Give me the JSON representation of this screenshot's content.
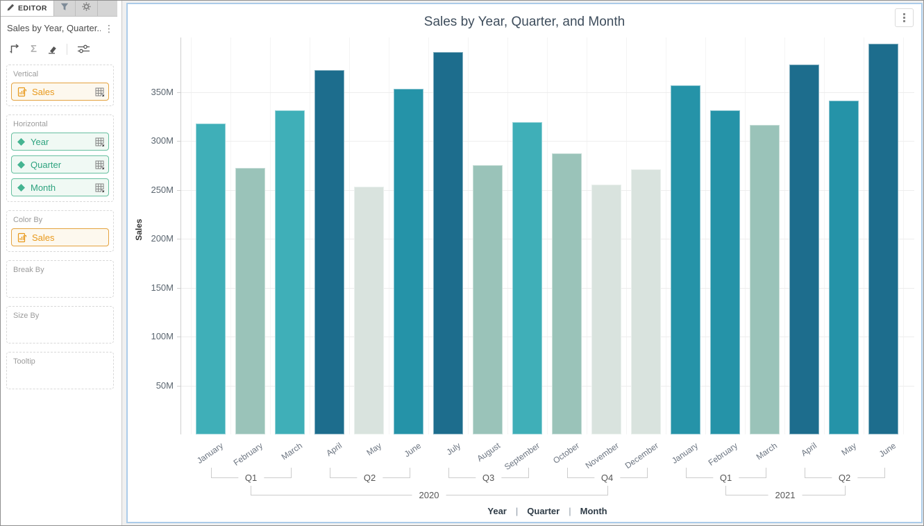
{
  "sidebar": {
    "tabs": [
      {
        "label": "EDITOR",
        "icon": "pencil-icon",
        "active": true
      },
      {
        "label": "",
        "icon": "funnel-icon",
        "active": false
      },
      {
        "label": "",
        "icon": "gear-icon",
        "active": false
      }
    ],
    "widget_title": "Sales by Year, Quarter...",
    "toolbar_icons": [
      "axes-arrow-icon",
      "sigma-icon",
      "eraser-icon",
      "sliders-icon"
    ],
    "sections": [
      {
        "label": "Vertical",
        "chips": [
          {
            "label": "Sales",
            "kind": "measure",
            "grid": true
          }
        ]
      },
      {
        "label": "Horizontal",
        "chips": [
          {
            "label": "Year",
            "kind": "dimension",
            "grid": true
          },
          {
            "label": "Quarter",
            "kind": "dimension",
            "grid": true
          },
          {
            "label": "Month",
            "kind": "dimension",
            "grid": true
          }
        ]
      },
      {
        "label": "Color By",
        "chips": [
          {
            "label": "Sales",
            "kind": "measure",
            "grid": false
          }
        ]
      },
      {
        "label": "Break By",
        "chips": []
      },
      {
        "label": "Size By",
        "chips": []
      },
      {
        "label": "Tooltip",
        "chips": []
      }
    ]
  },
  "colors": {
    "accent_orange": "#E8991C",
    "accent_green": "#2EA37F",
    "panel_border": "#ABCBE9",
    "palette_lowest": "#D9E3DE",
    "palette_low": "#9AC3B9",
    "palette_mid": "#3FAFB8",
    "palette_high": "#2593A8",
    "palette_highest": "#1D6D8D"
  },
  "chart_data": {
    "type": "bar",
    "title": "Sales by Year, Quarter, and Month",
    "ylabel": "Sales",
    "xlabel": "",
    "ylim": [
      0,
      405
    ],
    "grid": true,
    "y_ticks": [
      50,
      100,
      150,
      200,
      250,
      300,
      350
    ],
    "y_tick_suffix": "M",
    "categories": [
      "January",
      "February",
      "March",
      "April",
      "May",
      "June",
      "July",
      "August",
      "September",
      "October",
      "November",
      "December",
      "January",
      "February",
      "March",
      "April",
      "May",
      "June"
    ],
    "values": [
      318,
      272,
      331,
      372,
      253,
      353,
      391,
      275,
      319,
      287,
      255,
      271,
      357,
      331,
      316,
      378,
      341,
      399
    ],
    "bar_colors": [
      "#3FAFB8",
      "#9AC3B9",
      "#3FAFB8",
      "#1D6D8D",
      "#D9E3DE",
      "#2593A8",
      "#1D6D8D",
      "#9AC3B9",
      "#3FAFB8",
      "#9AC3B9",
      "#D9E3DE",
      "#D9E3DE",
      "#2593A8",
      "#2593A8",
      "#9AC3B9",
      "#1D6D8D",
      "#2593A8",
      "#1D6D8D"
    ],
    "quarter_groups": [
      {
        "label": "Q1",
        "from": 0,
        "to": 2
      },
      {
        "label": "Q2",
        "from": 3,
        "to": 5
      },
      {
        "label": "Q3",
        "from": 6,
        "to": 8
      },
      {
        "label": "Q4",
        "from": 9,
        "to": 11
      },
      {
        "label": "Q1",
        "from": 12,
        "to": 14
      },
      {
        "label": "Q2",
        "from": 15,
        "to": 17
      }
    ],
    "year_groups": [
      {
        "label": "2020",
        "from_q": 0,
        "to_q": 3
      },
      {
        "label": "2021",
        "from_q": 4,
        "to_q": 5
      }
    ],
    "legend": [
      "Year",
      "Quarter",
      "Month"
    ],
    "legend_position": "bottom",
    "menu_icon": "kebab-menu-icon"
  }
}
